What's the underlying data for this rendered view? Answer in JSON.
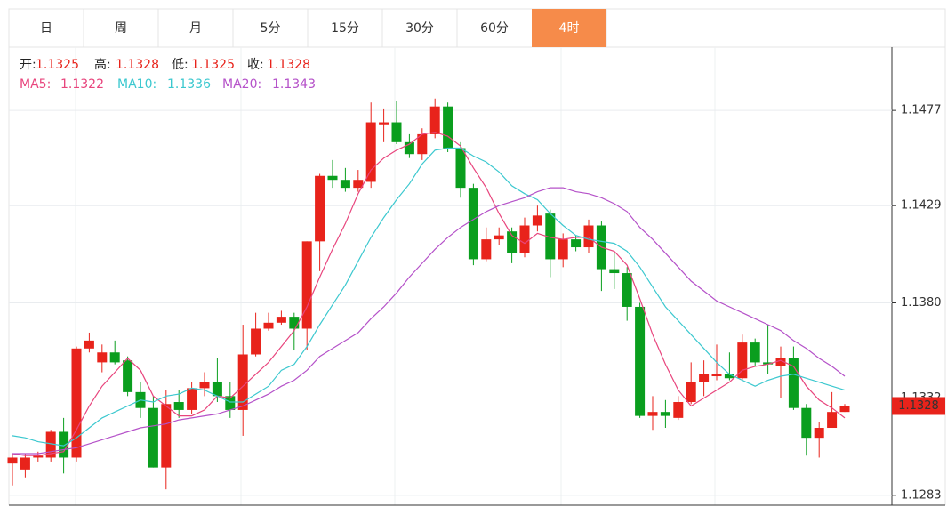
{
  "tabs": {
    "items": [
      "日",
      "周",
      "月",
      "5分",
      "15分",
      "30分",
      "60分",
      "4时"
    ],
    "active": 7,
    "active_color": "#f68b4a"
  },
  "chart_data": {
    "type": "candlestick",
    "ohlc_labels": [
      "开:",
      "高:",
      "低:",
      "收:"
    ],
    "ohlc_values": [
      1.1325,
      1.1328,
      1.1325,
      1.1328
    ],
    "up_color": "#e8231b",
    "down_color": "#0a9e1e",
    "ylim": [
      1.1278,
      1.1508
    ],
    "yticks": [
      1.1283,
      1.1332,
      {
        "value": 1.138,
        "label": "1.1380"
      },
      1.1429,
      1.1477
    ],
    "grid": true,
    "last_price": 1.1328,
    "open": [
      1.1299,
      1.1296,
      1.1302,
      1.1302,
      1.1315,
      1.1302,
      1.1357,
      1.135,
      1.1355,
      1.1351,
      1.1335,
      1.1327,
      1.1297,
      1.133,
      1.1326,
      1.1337,
      1.134,
      1.1333,
      1.1326,
      1.1354,
      1.1367,
      1.137,
      1.1373,
      1.1367,
      1.1411,
      1.1444,
      1.1442,
      1.1438,
      1.1441,
      1.147,
      1.1471,
      1.1461,
      1.1455,
      1.1465,
      1.1479,
      1.1458,
      1.1438,
      1.1402,
      1.1412,
      1.1416,
      1.1405,
      1.1419,
      1.1425,
      1.1402,
      1.1412,
      1.1408,
      1.1419,
      1.1397,
      1.1395,
      1.1378,
      1.1323,
      1.1325,
      1.1322,
      1.133,
      1.134,
      1.1343,
      1.1344,
      1.1342,
      1.136,
      1.135,
      1.1348,
      1.1352,
      1.1327,
      1.1312,
      1.1317,
      1.1325
    ],
    "high": [
      1.1304,
      1.1304,
      1.1305,
      1.1316,
      1.1322,
      1.1358,
      1.1365,
      1.1359,
      1.1361,
      1.1353,
      1.134,
      1.1333,
      1.1336,
      1.1336,
      1.134,
      1.1345,
      1.1352,
      1.134,
      1.1369,
      1.1375,
      1.1375,
      1.1376,
      1.1375,
      1.1411,
      1.1445,
      1.1452,
      1.1448,
      1.1447,
      1.1481,
      1.1478,
      1.1482,
      1.1465,
      1.1468,
      1.1483,
      1.1481,
      1.1461,
      1.144,
      1.1418,
      1.1418,
      1.1418,
      1.1423,
      1.1429,
      1.1427,
      1.1415,
      1.1414,
      1.1422,
      1.1421,
      1.1405,
      1.1398,
      1.138,
      1.1333,
      1.1331,
      1.1333,
      1.135,
      1.1351,
      1.1359,
      1.1355,
      1.1364,
      1.1362,
      1.1369,
      1.1358,
      1.1358,
      1.1329,
      1.132,
      1.1335,
      1.1329
    ],
    "low": [
      1.1288,
      1.1292,
      1.13,
      1.13,
      1.1294,
      1.13,
      1.1355,
      1.1345,
      1.1349,
      1.1333,
      1.1322,
      1.1297,
      1.1286,
      1.1322,
      1.1324,
      1.1333,
      1.133,
      1.1322,
      1.1313,
      1.1353,
      1.1366,
      1.1369,
      1.1356,
      1.1356,
      1.1396,
      1.1438,
      1.1436,
      1.1436,
      1.1438,
      1.1461,
      1.146,
      1.1453,
      1.1452,
      1.1463,
      1.1456,
      1.1433,
      1.1399,
      1.1401,
      1.1409,
      1.14,
      1.1403,
      1.1416,
      1.1393,
      1.1398,
      1.1406,
      1.1405,
      1.1386,
      1.1387,
      1.1371,
      1.1322,
      1.1316,
      1.1317,
      1.1321,
      1.1329,
      1.1333,
      1.1341,
      1.1341,
      1.1341,
      1.1348,
      1.1344,
      1.1332,
      1.1326,
      1.1303,
      1.1302,
      1.1317,
      1.1325
    ],
    "close": [
      1.1302,
      1.1302,
      1.1303,
      1.1315,
      1.1302,
      1.1357,
      1.1361,
      1.1355,
      1.135,
      1.1335,
      1.1327,
      1.1297,
      1.1329,
      1.1326,
      1.1337,
      1.134,
      1.1333,
      1.1326,
      1.1354,
      1.1367,
      1.137,
      1.1373,
      1.1367,
      1.1411,
      1.1444,
      1.1442,
      1.1438,
      1.1442,
      1.1471,
      1.1471,
      1.1461,
      1.1455,
      1.1465,
      1.1479,
      1.1458,
      1.1438,
      1.1402,
      1.1412,
      1.1414,
      1.1405,
      1.1419,
      1.1424,
      1.1402,
      1.1412,
      1.1408,
      1.1419,
      1.1397,
      1.1395,
      1.1378,
      1.1323,
      1.1325,
      1.1323,
      1.133,
      1.134,
      1.1344,
      1.1344,
      1.1342,
      1.136,
      1.135,
      1.1349,
      1.1352,
      1.1327,
      1.1312,
      1.1317,
      1.1325,
      1.1328
    ],
    "series": [
      {
        "name": "MA5:",
        "color": "#e8457d",
        "legend_value": 1.1322,
        "values": [
          1.1304,
          1.1303,
          1.1303,
          1.1304,
          1.1305,
          1.1316,
          1.1328,
          1.1338,
          1.1345,
          1.1352,
          1.1346,
          1.1333,
          1.1328,
          1.1323,
          1.1323,
          1.1326,
          1.1333,
          1.1332,
          1.1338,
          1.1344,
          1.135,
          1.1358,
          1.1366,
          1.1378,
          1.1393,
          1.1407,
          1.142,
          1.1435,
          1.1447,
          1.1453,
          1.1457,
          1.146,
          1.1465,
          1.1466,
          1.1464,
          1.1459,
          1.1448,
          1.1438,
          1.1425,
          1.1414,
          1.141,
          1.1415,
          1.1413,
          1.1412,
          1.1413,
          1.1413,
          1.1408,
          1.1406,
          1.1399,
          1.1382,
          1.1364,
          1.1349,
          1.1336,
          1.1328,
          1.1332,
          1.1336,
          1.134,
          1.1346,
          1.1348,
          1.1349,
          1.1351,
          1.1348,
          1.1338,
          1.1331,
          1.1327,
          1.1322
        ]
      },
      {
        "name": "MA10:",
        "color": "#3cc8cf",
        "legend_value": 1.1336,
        "values": [
          1.1313,
          1.1312,
          1.131,
          1.1309,
          1.1308,
          1.1312,
          1.1317,
          1.1322,
          1.1325,
          1.1328,
          1.1331,
          1.133,
          1.1333,
          1.1334,
          1.1337,
          1.1336,
          1.1333,
          1.133,
          1.133,
          1.1334,
          1.1338,
          1.1346,
          1.1349,
          1.1358,
          1.1369,
          1.1379,
          1.1389,
          1.1401,
          1.1413,
          1.1423,
          1.1432,
          1.144,
          1.145,
          1.1457,
          1.1458,
          1.1458,
          1.1454,
          1.1451,
          1.1446,
          1.1439,
          1.1435,
          1.1432,
          1.1425,
          1.1419,
          1.1414,
          1.1412,
          1.1411,
          1.141,
          1.1406,
          1.1398,
          1.1388,
          1.1378,
          1.1371,
          1.1364,
          1.1357,
          1.135,
          1.1344,
          1.1341,
          1.1338,
          1.1341,
          1.1343,
          1.1344,
          1.1342,
          1.134,
          1.1338,
          1.1336
        ]
      },
      {
        "name": "MA20:",
        "color": "#b552c9",
        "legend_value": 1.1343,
        "values": [
          1.1304,
          1.1304,
          1.1304,
          1.1305,
          1.1306,
          1.1307,
          1.1309,
          1.1311,
          1.1313,
          1.1315,
          1.1317,
          1.1318,
          1.1319,
          1.1321,
          1.1322,
          1.1323,
          1.1324,
          1.1326,
          1.1328,
          1.1331,
          1.1334,
          1.1338,
          1.1341,
          1.1346,
          1.1353,
          1.1357,
          1.1361,
          1.1365,
          1.1372,
          1.1378,
          1.1385,
          1.1393,
          1.14,
          1.1407,
          1.1413,
          1.1418,
          1.1422,
          1.1426,
          1.1429,
          1.1431,
          1.1433,
          1.1436,
          1.1438,
          1.1438,
          1.1436,
          1.1435,
          1.1433,
          1.143,
          1.1426,
          1.1418,
          1.1412,
          1.1405,
          1.1398,
          1.1391,
          1.1386,
          1.1381,
          1.1378,
          1.1375,
          1.1372,
          1.1369,
          1.1366,
          1.1361,
          1.1357,
          1.1352,
          1.1348,
          1.1343
        ]
      }
    ]
  }
}
